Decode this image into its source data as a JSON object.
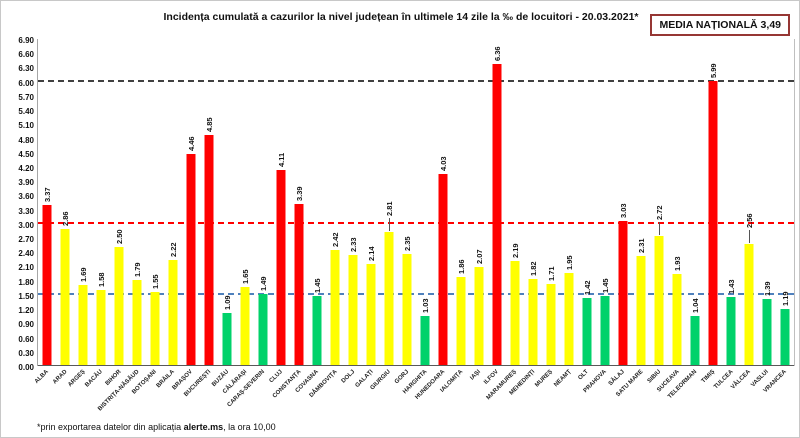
{
  "title": "Incidența cumulată a cazurilor la nivel județean în ultimele 14 zile la ‰ de locuitori - 20.03.2021*",
  "media_box": {
    "label": "MEDIA NAȚIONALĂ 3,49"
  },
  "footnote": {
    "prefix": "*prin exportarea datelor din aplicația ",
    "bold": "alerte.ms",
    "suffix": ", la ora 10,00"
  },
  "chart_data": {
    "type": "bar",
    "title": "Incidența cumulată a cazurilor la nivel județean în ultimele 14 zile la ‰ de locuitori - 20.03.2021*",
    "xlabel": "",
    "ylabel": "",
    "ylim": [
      0,
      6.9
    ],
    "ytick_step": 0.3,
    "grid": false,
    "national_average": 3.49,
    "value_label_rotation": "vertical",
    "category_label_rotation": 45,
    "bar_colors": {
      "red": "#ff0000",
      "yellow": "#ffff00",
      "green": "#00d26a"
    },
    "reference_lines": [
      {
        "value": 1.5,
        "color": "#4f81bd"
      },
      {
        "value": 3.0,
        "color": "#ff0000"
      },
      {
        "value": 6.0,
        "color": "#404040"
      }
    ],
    "counties": [
      {
        "name": "ALBA",
        "value": 3.37,
        "color": "red"
      },
      {
        "name": "ARAD",
        "value": 2.86,
        "color": "yellow"
      },
      {
        "name": "ARGEȘ",
        "value": 1.69,
        "color": "yellow"
      },
      {
        "name": "BACĂU",
        "value": 1.58,
        "color": "yellow"
      },
      {
        "name": "BIHOR",
        "value": 2.5,
        "color": "yellow"
      },
      {
        "name": "BISTRIȚA-NĂSĂUD",
        "value": 1.79,
        "color": "yellow"
      },
      {
        "name": "BOTOȘANI",
        "value": 1.55,
        "color": "yellow"
      },
      {
        "name": "BRĂILA",
        "value": 2.22,
        "color": "yellow"
      },
      {
        "name": "BRAȘOV",
        "value": 4.46,
        "color": "red"
      },
      {
        "name": "BUCUREȘTI",
        "value": 4.85,
        "color": "red"
      },
      {
        "name": "BUZĂU",
        "value": 1.09,
        "color": "green"
      },
      {
        "name": "CĂLĂRAȘI",
        "value": 1.65,
        "color": "yellow"
      },
      {
        "name": "CARAȘ-SEVERIN",
        "value": 1.49,
        "color": "green"
      },
      {
        "name": "CLUJ",
        "value": 4.11,
        "color": "red"
      },
      {
        "name": "CONSTANȚA",
        "value": 3.39,
        "color": "red"
      },
      {
        "name": "COVASNA",
        "value": 1.45,
        "color": "green"
      },
      {
        "name": "DÂMBOVIȚA",
        "value": 2.42,
        "color": "yellow"
      },
      {
        "name": "DOLJ",
        "value": 2.33,
        "color": "yellow"
      },
      {
        "name": "GALAȚI",
        "value": 2.14,
        "color": "yellow"
      },
      {
        "name": "GIURGIU",
        "value": 2.81,
        "color": "yellow",
        "leader": true
      },
      {
        "name": "GORJ",
        "value": 2.35,
        "color": "yellow"
      },
      {
        "name": "HARGHITA",
        "value": 1.03,
        "color": "green"
      },
      {
        "name": "HUNEDOARA",
        "value": 4.03,
        "color": "red"
      },
      {
        "name": "IALOMIȚA",
        "value": 1.86,
        "color": "yellow"
      },
      {
        "name": "IAȘI",
        "value": 2.07,
        "color": "yellow"
      },
      {
        "name": "ILFOV",
        "value": 6.36,
        "color": "red"
      },
      {
        "name": "MARAMUREȘ",
        "value": 2.19,
        "color": "yellow"
      },
      {
        "name": "MEHEDINȚI",
        "value": 1.82,
        "color": "yellow"
      },
      {
        "name": "MUREȘ",
        "value": 1.71,
        "color": "yellow"
      },
      {
        "name": "NEAMȚ",
        "value": 1.95,
        "color": "yellow"
      },
      {
        "name": "OLT",
        "value": 1.42,
        "color": "green"
      },
      {
        "name": "PRAHOVA",
        "value": 1.45,
        "color": "green"
      },
      {
        "name": "SĂLAJ",
        "value": 3.03,
        "color": "red"
      },
      {
        "name": "SATU MARE",
        "value": 2.31,
        "color": "yellow"
      },
      {
        "name": "SIBIU",
        "value": 2.72,
        "color": "yellow",
        "leader": true
      },
      {
        "name": "SUCEAVA",
        "value": 1.93,
        "color": "yellow"
      },
      {
        "name": "TELEORMAN",
        "value": 1.04,
        "color": "green"
      },
      {
        "name": "TIMIȘ",
        "value": 5.99,
        "color": "red"
      },
      {
        "name": "TULCEA",
        "value": 1.43,
        "color": "green"
      },
      {
        "name": "VÂLCEA",
        "value": 2.56,
        "color": "yellow",
        "leader": true
      },
      {
        "name": "VASLUI",
        "value": 1.39,
        "color": "green"
      },
      {
        "name": "VRANCEA",
        "value": 1.19,
        "color": "green"
      }
    ]
  }
}
